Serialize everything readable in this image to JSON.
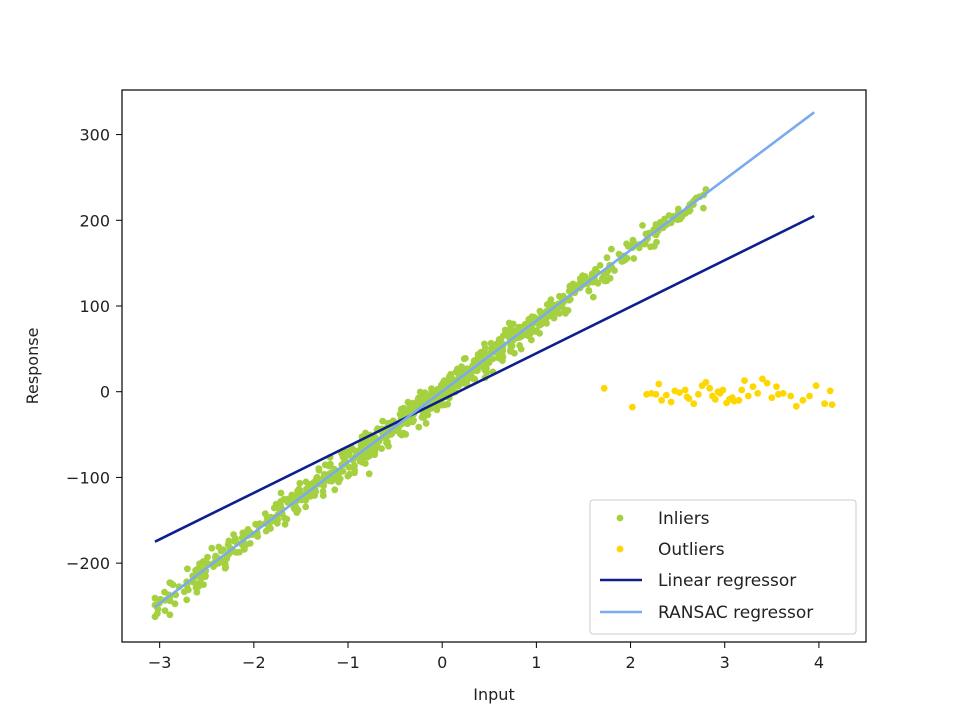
{
  "chart_data": {
    "type": "scatter",
    "xlabel": "Input",
    "ylabel": "Response",
    "xlim": [
      -3.4,
      4.5
    ],
    "ylim": [
      -292,
      352
    ],
    "xticks": [
      -3,
      -2,
      -1,
      0,
      1,
      2,
      3,
      4
    ],
    "xtick_labels": [
      "−3",
      "−2",
      "−1",
      "0",
      "1",
      "2",
      "3",
      "4"
    ],
    "yticks": [
      -200,
      -100,
      0,
      100,
      200,
      300
    ],
    "ytick_labels": [
      "−200",
      "−100",
      "0",
      "100",
      "200",
      "300"
    ],
    "grid": false,
    "legend_position": "lower-right",
    "colors": {
      "inliers": "#a5d140",
      "outliers": "#ffd700",
      "linear": "#0d1f8f",
      "ransac": "#7aaaf0"
    },
    "series": [
      {
        "name": "Inliers",
        "kind": "scatter",
        "color": "#a5d140",
        "generator": {
          "count": 900,
          "x_range": [
            -3.05,
            2.8
          ],
          "slope": 82,
          "intercept": 0,
          "noise": 8
        }
      },
      {
        "name": "Outliers",
        "kind": "scatter",
        "color": "#ffd700",
        "points": [
          [
            1.72,
            4
          ],
          [
            2.02,
            -18
          ],
          [
            2.17,
            -3
          ],
          [
            2.22,
            -2
          ],
          [
            2.27,
            -3
          ],
          [
            2.3,
            9
          ],
          [
            2.33,
            -10
          ],
          [
            2.38,
            -4
          ],
          [
            2.43,
            -12
          ],
          [
            2.47,
            1
          ],
          [
            2.52,
            -1
          ],
          [
            2.58,
            2
          ],
          [
            2.62,
            -8
          ],
          [
            2.67,
            -14
          ],
          [
            2.72,
            -3
          ],
          [
            2.76,
            7
          ],
          [
            2.8,
            11
          ],
          [
            2.84,
            4
          ],
          [
            2.87,
            -5
          ],
          [
            2.9,
            -9
          ],
          [
            2.93,
            0
          ],
          [
            2.98,
            2
          ],
          [
            3.02,
            -13
          ],
          [
            3.05,
            -9
          ],
          [
            3.1,
            -11
          ],
          [
            3.15,
            -10
          ],
          [
            3.18,
            2
          ],
          [
            3.21,
            13
          ],
          [
            3.25,
            -5
          ],
          [
            3.3,
            6
          ],
          [
            3.35,
            -2
          ],
          [
            3.4,
            15
          ],
          [
            3.45,
            10
          ],
          [
            3.5,
            -7
          ],
          [
            3.55,
            6
          ],
          [
            3.62,
            -2
          ],
          [
            3.7,
            -5
          ],
          [
            3.76,
            -17
          ],
          [
            3.83,
            -10
          ],
          [
            3.9,
            -5
          ],
          [
            3.97,
            7
          ],
          [
            4.06,
            -14
          ],
          [
            4.12,
            1
          ],
          [
            4.14,
            -15
          ],
          [
            2.6,
            -6
          ],
          [
            3.57,
            -3
          ],
          [
            3.08,
            -7
          ],
          [
            2.95,
            -2
          ]
        ]
      },
      {
        "name": "Linear regressor",
        "kind": "line",
        "color": "#0d1f8f",
        "x": [
          -3.05,
          3.95
        ],
        "y": [
          -175,
          205
        ]
      },
      {
        "name": "RANSAC regressor",
        "kind": "line",
        "color": "#7aaaf0",
        "x": [
          -3.05,
          3.95
        ],
        "y": [
          -251,
          326
        ]
      }
    ]
  }
}
